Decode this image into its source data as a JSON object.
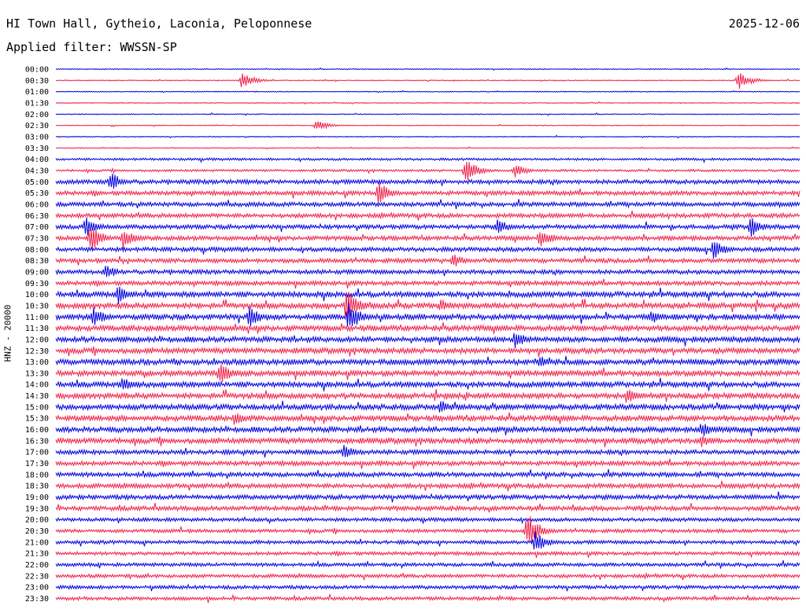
{
  "header": {
    "station": "HI Town Hall, Gytheio, Laconia, Peloponnese",
    "date": "2025-12-06",
    "filter": "Applied filter: WWSSN-SP"
  },
  "colors": {
    "even_rows": "#0000e0",
    "odd_rows": "#f0204a",
    "background": "#ffffff"
  },
  "chart_data": {
    "type": "line",
    "title": "HI Town Hall, Gytheio, Laconia, Peloponnese",
    "ylabel": "HNZ - 20000",
    "xlabel": "",
    "row_interval_minutes": 30,
    "rows": [
      "00:00",
      "00:30",
      "01:00",
      "01:30",
      "02:00",
      "02:30",
      "03:00",
      "03:30",
      "04:00",
      "04:30",
      "05:00",
      "05:30",
      "06:00",
      "06:30",
      "07:00",
      "07:30",
      "08:00",
      "08:30",
      "09:00",
      "09:30",
      "10:00",
      "10:30",
      "11:00",
      "11:30",
      "12:00",
      "12:30",
      "13:00",
      "13:30",
      "14:00",
      "14:30",
      "15:00",
      "15:30",
      "16:00",
      "16:30",
      "17:00",
      "17:30",
      "18:00",
      "18:30",
      "19:00",
      "19:30",
      "20:00",
      "20:30",
      "21:00",
      "21:30",
      "22:00",
      "22:30",
      "23:00",
      "23:30"
    ],
    "events": [
      {
        "row": "00:30",
        "minute": 7.5,
        "relative_amplitude": 0.45
      },
      {
        "row": "00:30",
        "minute": 27.5,
        "relative_amplitude": 0.5
      },
      {
        "row": "02:30",
        "minute": 10.5,
        "relative_amplitude": 0.3
      },
      {
        "row": "04:30",
        "minute": 16.5,
        "relative_amplitude": 0.7
      },
      {
        "row": "04:30",
        "minute": 18.5,
        "relative_amplitude": 0.4
      },
      {
        "row": "05:00",
        "minute": 2.2,
        "relative_amplitude": 0.55
      },
      {
        "row": "05:30",
        "minute": 13.0,
        "relative_amplitude": 0.65
      },
      {
        "row": "07:00",
        "minute": 1.2,
        "relative_amplitude": 0.6
      },
      {
        "row": "07:00",
        "minute": 17.8,
        "relative_amplitude": 0.45
      },
      {
        "row": "07:00",
        "minute": 28.0,
        "relative_amplitude": 0.55
      },
      {
        "row": "07:30",
        "minute": 1.4,
        "relative_amplitude": 0.75
      },
      {
        "row": "07:30",
        "minute": 2.7,
        "relative_amplitude": 0.6
      },
      {
        "row": "07:30",
        "minute": 19.5,
        "relative_amplitude": 0.6
      },
      {
        "row": "08:00",
        "minute": 26.5,
        "relative_amplitude": 0.55
      },
      {
        "row": "08:30",
        "minute": 16.0,
        "relative_amplitude": 0.4
      },
      {
        "row": "09:00",
        "minute": 2.0,
        "relative_amplitude": 0.4
      },
      {
        "row": "10:00",
        "minute": 2.5,
        "relative_amplitude": 0.55
      },
      {
        "row": "10:30",
        "minute": 11.7,
        "relative_amplitude": 1.0
      },
      {
        "row": "10:30",
        "minute": 15.5,
        "relative_amplitude": 0.4
      },
      {
        "row": "11:00",
        "minute": 1.5,
        "relative_amplitude": 0.6
      },
      {
        "row": "11:00",
        "minute": 7.8,
        "relative_amplitude": 0.6
      },
      {
        "row": "11:00",
        "minute": 11.8,
        "relative_amplitude": 0.9
      },
      {
        "row": "11:00",
        "minute": 24.0,
        "relative_amplitude": 0.4
      },
      {
        "row": "12:00",
        "minute": 18.5,
        "relative_amplitude": 0.5
      },
      {
        "row": "13:00",
        "minute": 19.5,
        "relative_amplitude": 0.35
      },
      {
        "row": "13:30",
        "minute": 6.6,
        "relative_amplitude": 0.65
      },
      {
        "row": "14:00",
        "minute": 2.7,
        "relative_amplitude": 0.45
      },
      {
        "row": "14:30",
        "minute": 23.0,
        "relative_amplitude": 0.45
      },
      {
        "row": "15:00",
        "minute": 15.5,
        "relative_amplitude": 0.45
      },
      {
        "row": "15:30",
        "minute": 7.2,
        "relative_amplitude": 0.4
      },
      {
        "row": "16:00",
        "minute": 26.0,
        "relative_amplitude": 0.45
      },
      {
        "row": "16:30",
        "minute": 26.0,
        "relative_amplitude": 0.35
      },
      {
        "row": "17:00",
        "minute": 11.6,
        "relative_amplitude": 0.4
      },
      {
        "row": "20:30",
        "minute": 19.0,
        "relative_amplitude": 1.0
      },
      {
        "row": "21:00",
        "minute": 19.3,
        "relative_amplitude": 0.6
      }
    ]
  }
}
